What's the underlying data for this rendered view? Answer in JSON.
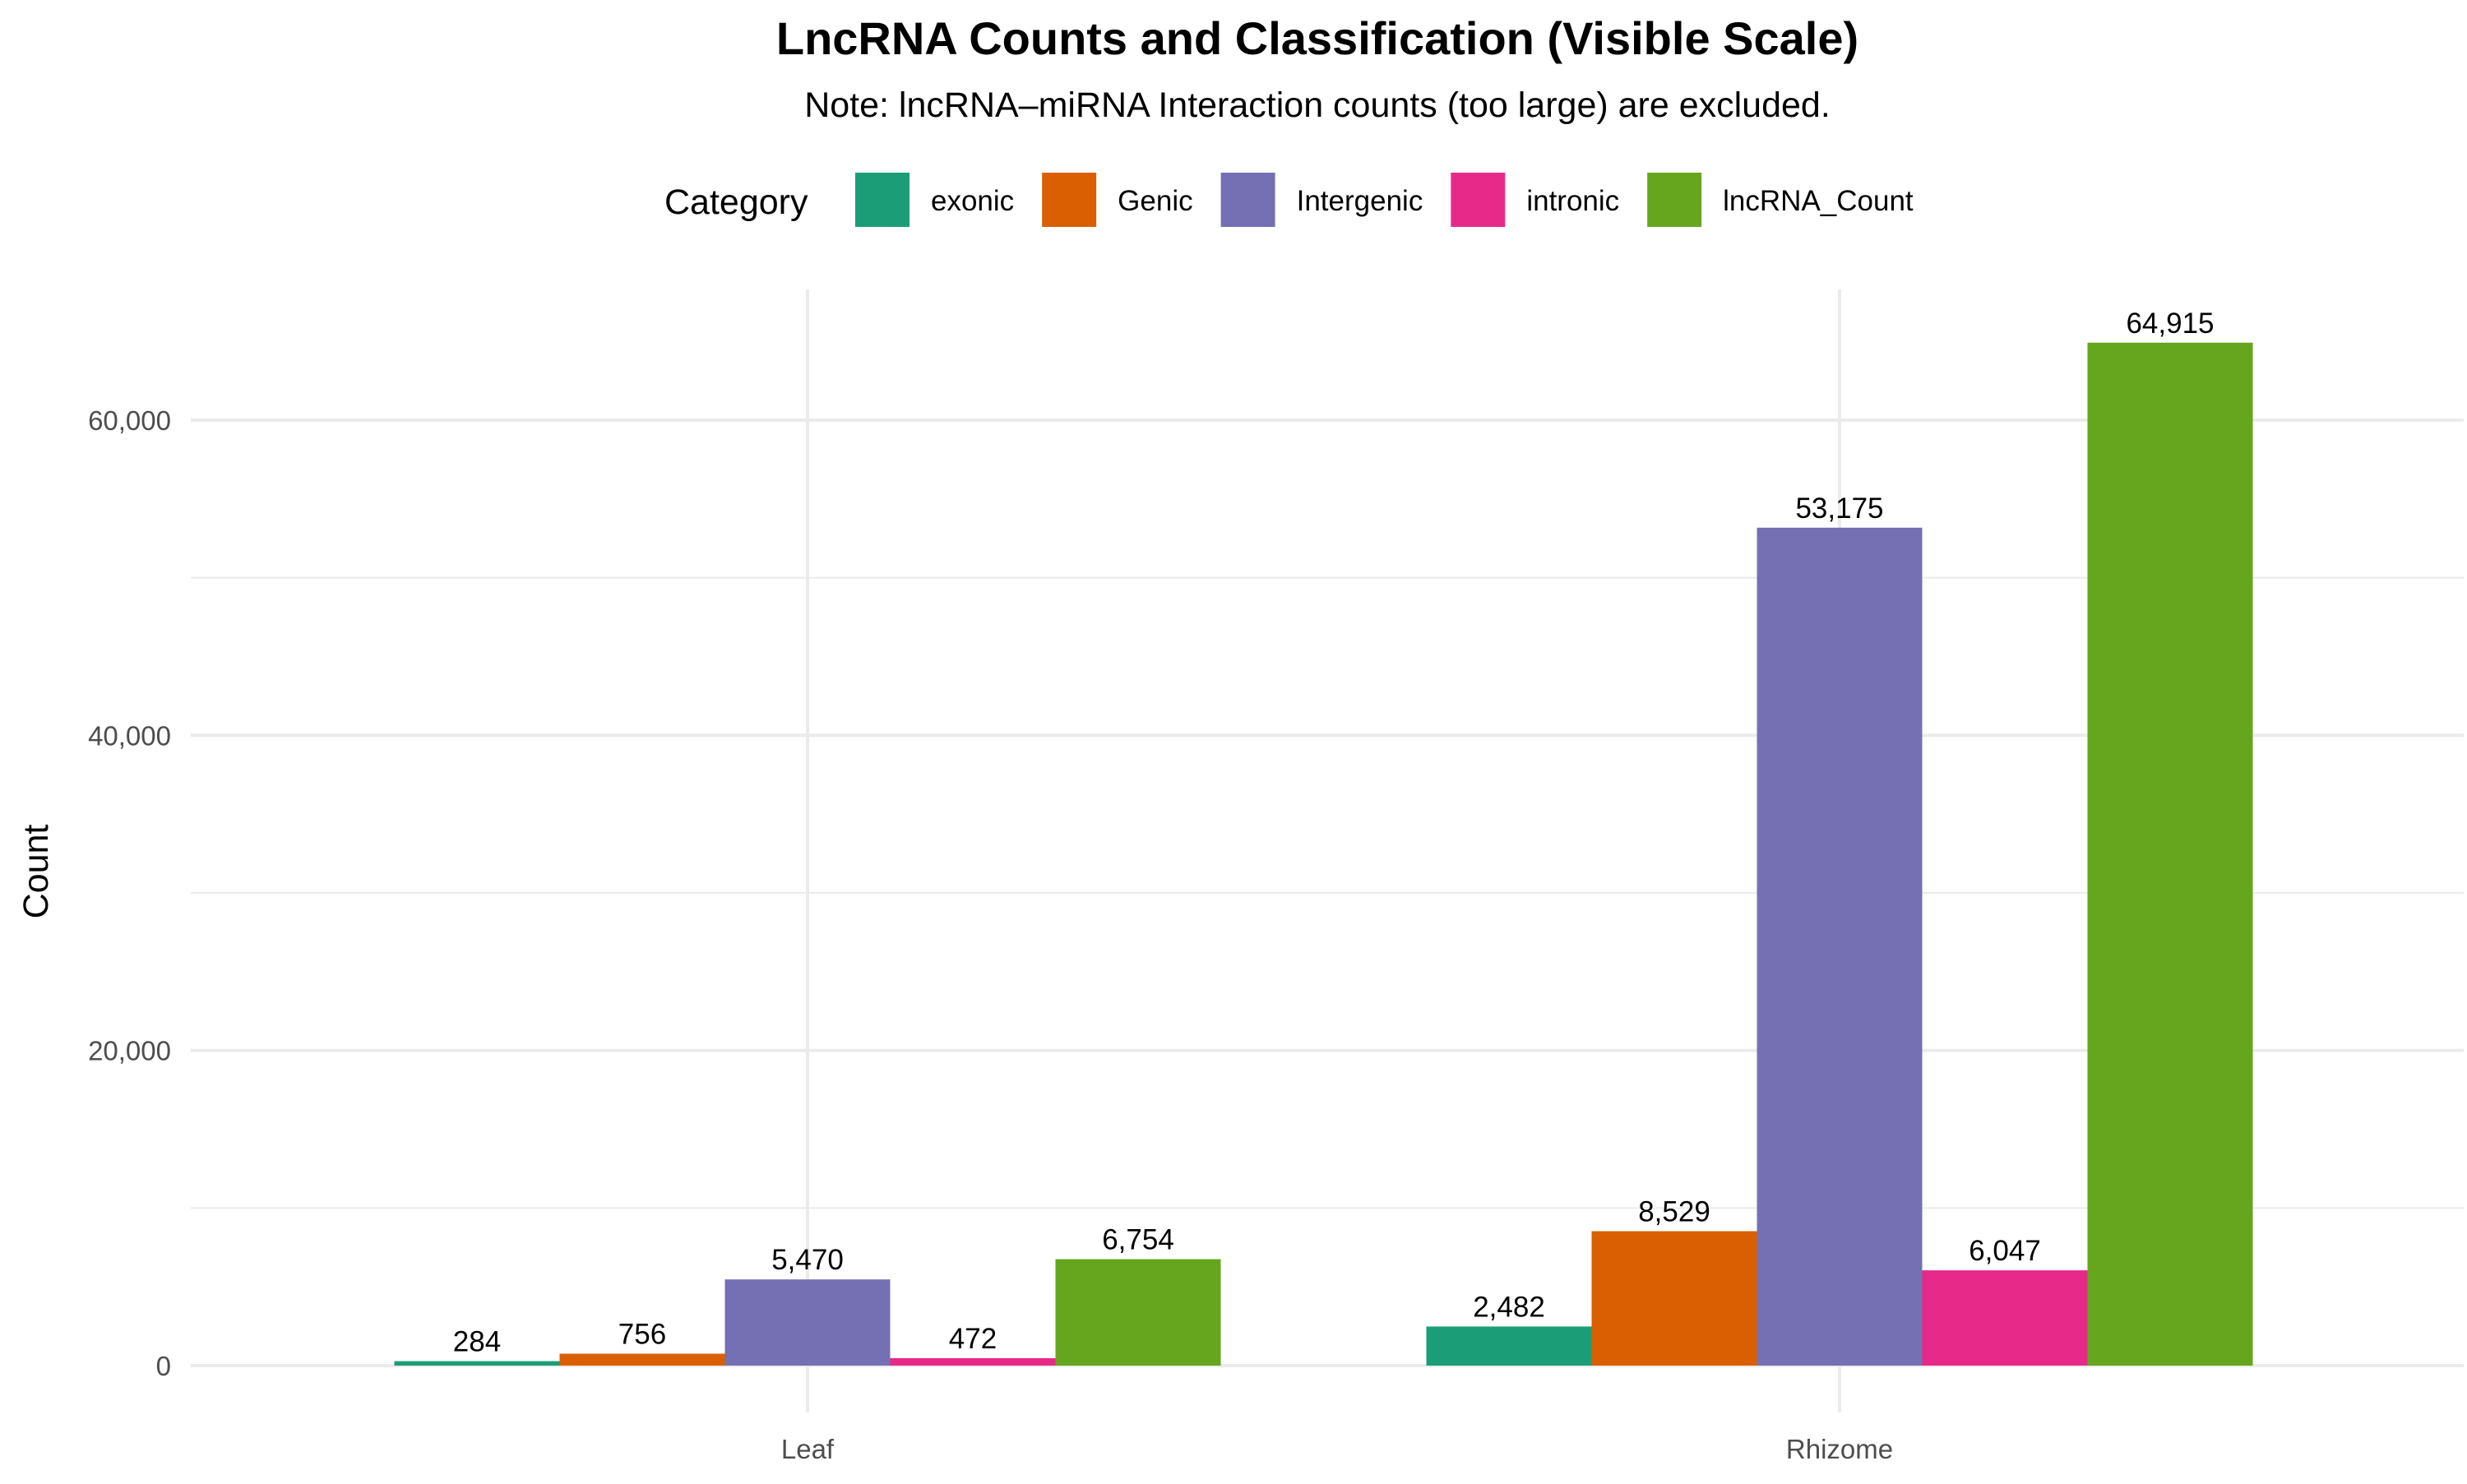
{
  "chart_data": {
    "type": "bar",
    "title": "LncRNA Counts and Classification (Visible Scale)",
    "subtitle": "Note: lncRNA–miRNA Interaction counts (too large) are excluded.",
    "xlabel": "",
    "ylabel": "Count",
    "categories": [
      "Leaf",
      "Rhizome"
    ],
    "series": [
      {
        "name": "exonic",
        "color": "#1b9e77",
        "values": [
          284,
          2482
        ],
        "labels": [
          "284",
          "2,482"
        ]
      },
      {
        "name": "Genic",
        "color": "#d95f02",
        "values": [
          756,
          8529
        ],
        "labels": [
          "756",
          "8,529"
        ]
      },
      {
        "name": "Intergenic",
        "color": "#7570b3",
        "values": [
          5470,
          53175
        ],
        "labels": [
          "5,470",
          "53,175"
        ]
      },
      {
        "name": "intronic",
        "color": "#e7298a",
        "values": [
          472,
          6047
        ],
        "labels": [
          "472",
          "6,047"
        ]
      },
      {
        "name": "lncRNA_Count",
        "color": "#66a61e",
        "values": [
          6754,
          64915
        ],
        "labels": [
          "6,754",
          "64,915"
        ]
      }
    ],
    "legend_title": "Category",
    "legend_position": "top",
    "ylim": [
      0,
      68000
    ],
    "yticks": [
      0,
      20000,
      40000,
      60000
    ],
    "ytick_labels": [
      "0",
      "20,000",
      "40,000",
      "60,000"
    ],
    "grid": true
  }
}
